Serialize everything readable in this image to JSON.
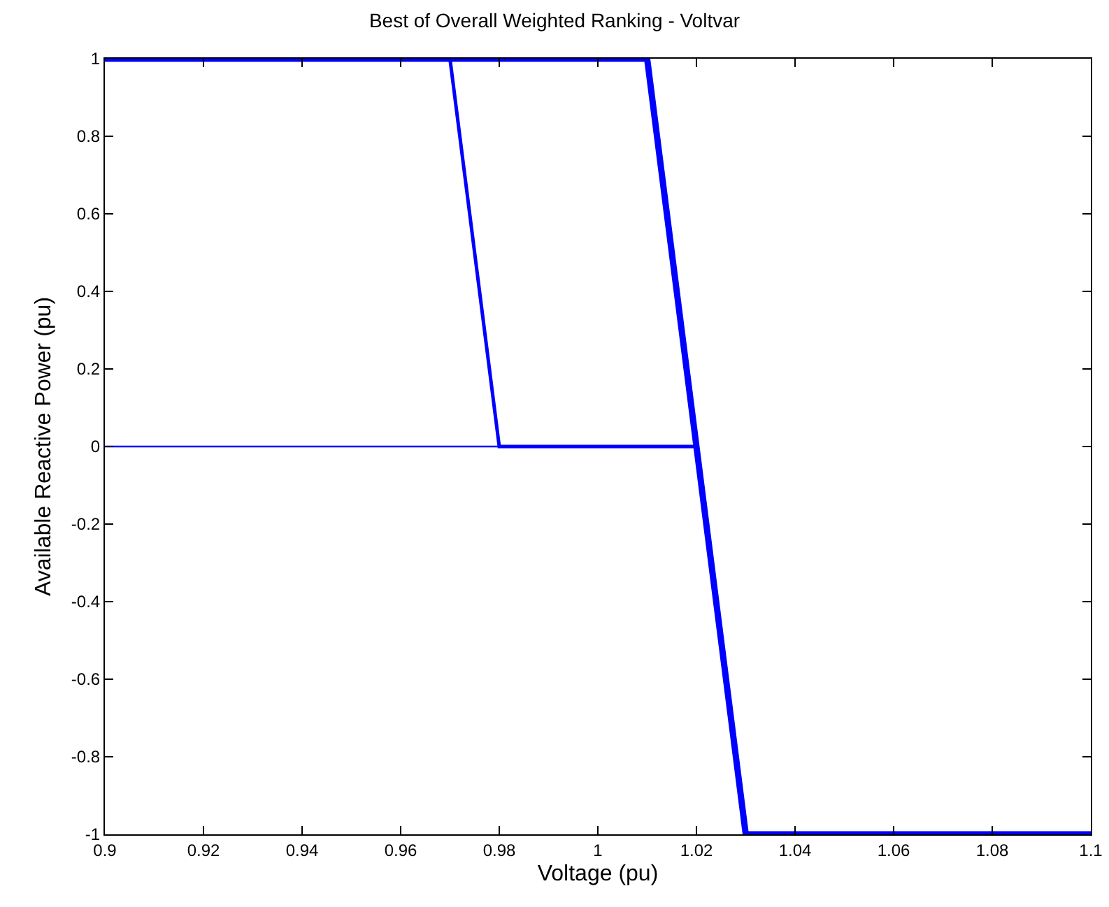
{
  "chart_data": {
    "type": "line",
    "title": "Best of Overall Weighted Ranking - Voltvar",
    "xlabel": "Voltage (pu)",
    "ylabel": "Available Reactive Power (pu)",
    "xlim": [
      0.9,
      1.1
    ],
    "xticks": [
      {
        "value": 0.9,
        "label": "0.9"
      },
      {
        "value": 0.92,
        "label": "0.92"
      },
      {
        "value": 0.94,
        "label": "0.94"
      },
      {
        "value": 0.96,
        "label": "0.96"
      },
      {
        "value": 0.98,
        "label": "0.98"
      },
      {
        "value": 1,
        "label": "1"
      },
      {
        "value": 1.02,
        "label": "1.02"
      },
      {
        "value": 1.04,
        "label": "1.04"
      },
      {
        "value": 1.06,
        "label": "1.06"
      },
      {
        "value": 1.08,
        "label": "1.08"
      },
      {
        "value": 1.1,
        "label": "1.1"
      }
    ],
    "ylim": [
      -1,
      1
    ],
    "yticks": [
      -1,
      -0.8,
      -0.6,
      -0.4,
      -0.2,
      0,
      0.2,
      0.4,
      0.6,
      0.8,
      1
    ],
    "grid": false,
    "marker": "none",
    "line_style": "solid",
    "series": [
      {
        "color": "#0000ff",
        "x": [
          0.9,
          1.02,
          1.03,
          1.1
        ],
        "values": [
          0,
          0,
          -1,
          -1
        ]
      },
      {
        "color": "#0000ff",
        "x": [
          0.9,
          0.97,
          0.98,
          1.02,
          1.03,
          1.1
        ],
        "values": [
          1,
          1,
          0,
          0,
          -1,
          -1
        ]
      },
      {
        "color": "#0000ff",
        "x": [
          0.9,
          1.01,
          1.03,
          1.1
        ],
        "values": [
          1,
          1,
          -1,
          -1
        ]
      }
    ]
  }
}
